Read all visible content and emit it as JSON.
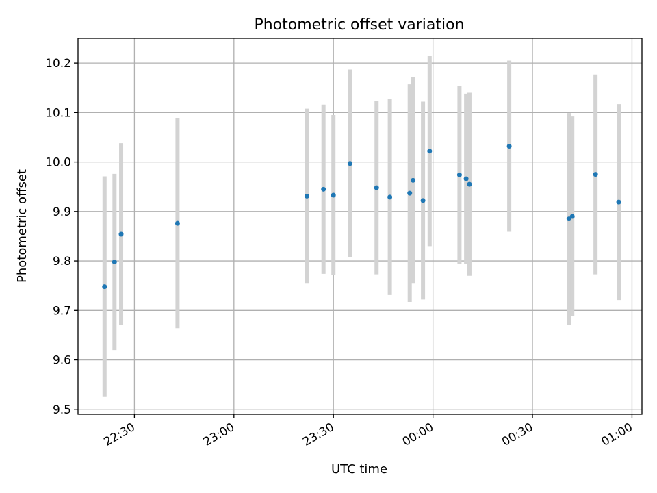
{
  "chart_data": {
    "type": "scatter",
    "title": "Photometric offset variation",
    "xlabel": "UTC time",
    "ylabel": "Photometric offset",
    "x_range_minutes_clock": [
      "22:13",
      "23:00",
      "00:00",
      "01:03"
    ],
    "xlim": [
      "22:13",
      "01:03"
    ],
    "ylim": [
      9.49,
      10.25
    ],
    "y_ticks": [
      9.5,
      9.6,
      9.7,
      9.8,
      9.9,
      10.0,
      10.1,
      10.2
    ],
    "y_tick_labels": [
      "9.5",
      "9.6",
      "9.7",
      "9.8",
      "9.9",
      "10.0",
      "10.1",
      "10.2"
    ],
    "x_ticks": [
      "22:30",
      "23:00",
      "23:30",
      "00:00",
      "00:30",
      "01:00"
    ],
    "x_tick_labels": [
      "22:30",
      "23:00",
      "23:30",
      "00:00",
      "00:30",
      "01:00"
    ],
    "grid": true,
    "error_bar_color": "#d3d3d3",
    "point_color": "#1f77b4",
    "points": [
      {
        "time": "22:21",
        "y": 9.748,
        "err": 0.223
      },
      {
        "time": "22:24",
        "y": 9.798,
        "err": 0.178
      },
      {
        "time": "22:26",
        "y": 9.854,
        "err": 0.184
      },
      {
        "time": "22:43",
        "y": 9.876,
        "err": 0.212
      },
      {
        "time": "23:22",
        "y": 9.931,
        "err": 0.177
      },
      {
        "time": "23:27",
        "y": 9.945,
        "err": 0.171
      },
      {
        "time": "23:30",
        "y": 9.933,
        "err": 0.162
      },
      {
        "time": "23:35",
        "y": 9.997,
        "err": 0.19
      },
      {
        "time": "23:43",
        "y": 9.948,
        "err": 0.175
      },
      {
        "time": "23:47",
        "y": 9.929,
        "err": 0.198
      },
      {
        "time": "23:53",
        "y": 9.937,
        "err": 0.22
      },
      {
        "time": "23:54",
        "y": 9.963,
        "err": 0.209
      },
      {
        "time": "23:57",
        "y": 9.922,
        "err": 0.2
      },
      {
        "time": "23:59",
        "y": 10.022,
        "err": 0.192
      },
      {
        "time": "00:08",
        "y": 9.974,
        "err": 0.18
      },
      {
        "time": "00:10",
        "y": 9.966,
        "err": 0.172
      },
      {
        "time": "00:11",
        "y": 9.955,
        "err": 0.185
      },
      {
        "time": "00:23",
        "y": 10.032,
        "err": 0.173
      },
      {
        "time": "00:41",
        "y": 9.885,
        "err": 0.214
      },
      {
        "time": "00:42",
        "y": 9.89,
        "err": 0.202
      },
      {
        "time": "00:49",
        "y": 9.975,
        "err": 0.202
      },
      {
        "time": "00:56",
        "y": 9.919,
        "err": 0.198
      }
    ]
  }
}
